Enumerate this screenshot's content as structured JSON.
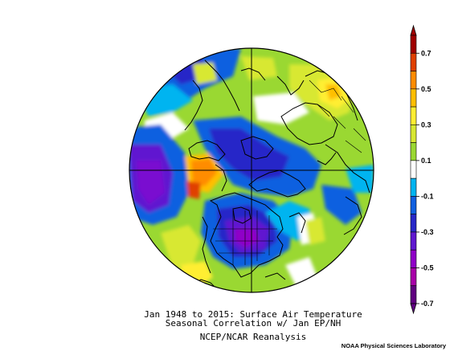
{
  "figure": {
    "caption_line1": "Jan 1948 to 2015: Surface Air Temperature",
    "caption_line2": "Seasonal Correlation w/ Jan EP/NH",
    "caption_line3": "NCEP/NCAR Reanalysis",
    "credit": "NOAA Physical Sciences Laboratory"
  },
  "colorbar": {
    "levels": [
      {
        "label": "0.7",
        "color": "#a00000"
      },
      {
        "label": "",
        "color": "#e04000"
      },
      {
        "label": "0.5",
        "color": "#ff8c00"
      },
      {
        "label": "",
        "color": "#ffbf00"
      },
      {
        "label": "0.3",
        "color": "#ffee33"
      },
      {
        "label": "",
        "color": "#d8e832"
      },
      {
        "label": "0.1",
        "color": "#9ad832"
      },
      {
        "label": "",
        "color": "#ffffff"
      },
      {
        "label": "-0.1",
        "color": "#00b4f0"
      },
      {
        "label": "",
        "color": "#1060e0"
      },
      {
        "label": "-0.3",
        "color": "#2828c8"
      },
      {
        "label": "",
        "color": "#6018d0"
      },
      {
        "label": "-0.5",
        "color": "#9000c8"
      },
      {
        "label": "",
        "color": "#a800a8"
      },
      {
        "label": "-0.7",
        "color": "#600080"
      }
    ],
    "tick_labels": [
      "0.7",
      "0.5",
      "0.3",
      "0.1",
      "-0.1",
      "-0.3",
      "-0.5",
      "-0.7"
    ]
  },
  "projection": "north-polar-stereographic"
}
